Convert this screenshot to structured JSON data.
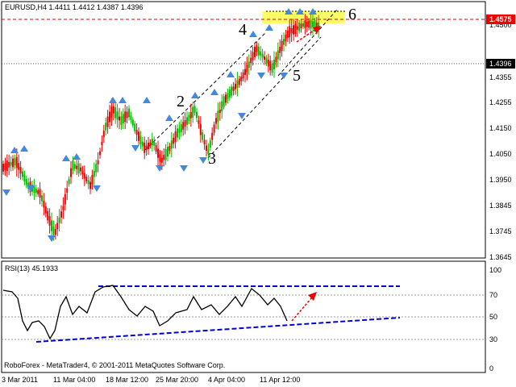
{
  "main_chart": {
    "title": "EURUSD,H4  1.4411 1.4412 1.4387 1.4396",
    "price_ticks": [
      "1.4500",
      "1.4355",
      "1.4255",
      "1.4150",
      "1.4050",
      "1.3950",
      "1.3845",
      "1.3745",
      "1.3645"
    ],
    "current_price": "1.4396",
    "target_price": "1.4575",
    "wave_labels": [
      "2",
      "3",
      "4",
      "5",
      "6"
    ],
    "colors": {
      "bull_candle": "#00bb00",
      "bear_candle": "#ee0000",
      "fractal": "#4488dd",
      "target_zone": "#ffff66",
      "arrow": "#ee0000"
    }
  },
  "rsi_panel": {
    "title": "RSI(13) 45.1933",
    "levels": [
      "100",
      "70",
      "50",
      "30",
      "0"
    ],
    "colors": {
      "line": "#000000",
      "trend": "#0000dd",
      "arrow": "#ee0000"
    }
  },
  "footer": {
    "copyright": "RoboForex - MetaTrader4, © 2001-2011 MetaQuotes Software Corp."
  },
  "time_axis": {
    "labels": [
      "3 Mar 2011",
      "11 Mar 04:00",
      "18 Mar 12:00",
      "25 Mar 20:00",
      "4 Apr 04:00",
      "11 Apr 12:00"
    ]
  }
}
